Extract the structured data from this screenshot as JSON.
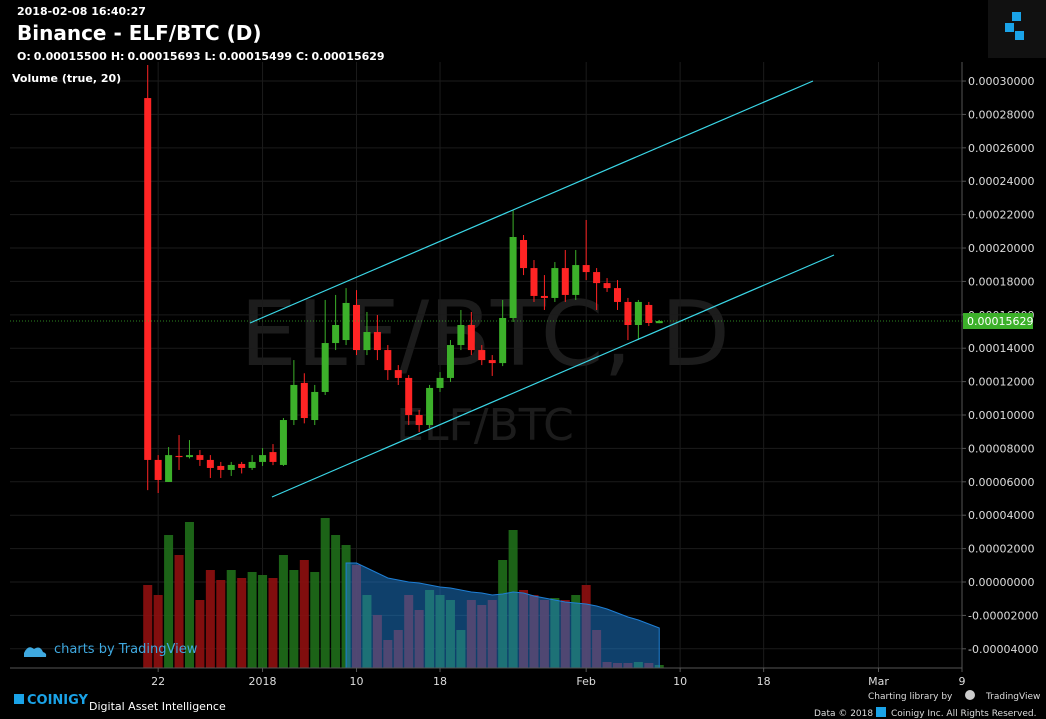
{
  "header": {
    "timestamp": "2018-02-08 16:40:27",
    "title": "Binance - ELF/BTC (D)",
    "ohlc": [
      {
        "label": "O:",
        "value": "0.00015500"
      },
      {
        "label": "H:",
        "value": "0.00015693"
      },
      {
        "label": "L:",
        "value": "0.00015499"
      },
      {
        "label": "C:",
        "value": "0.00015629"
      }
    ],
    "volume_label": "Volume (true, 20)"
  },
  "watermark": {
    "main": "ELF/BTC, D",
    "sub": "ELF/BTC"
  },
  "chart_data": {
    "type": "candlestick",
    "x": [
      "2017-12-21",
      "2017-12-22",
      "2017-12-23",
      "2017-12-24",
      "2017-12-25",
      "2017-12-26",
      "2017-12-27",
      "2017-12-28",
      "2017-12-29",
      "2017-12-30",
      "2017-12-31",
      "2018-01-01",
      "2018-01-02",
      "2018-01-03",
      "2018-01-04",
      "2018-01-05",
      "2018-01-06",
      "2018-01-07",
      "2018-01-08",
      "2018-01-09",
      "2018-01-10",
      "2018-01-11",
      "2018-01-12",
      "2018-01-13",
      "2018-01-14",
      "2018-01-15",
      "2018-01-16",
      "2018-01-17",
      "2018-01-18",
      "2018-01-19",
      "2018-01-20",
      "2018-01-21",
      "2018-01-22",
      "2018-01-23",
      "2018-01-24",
      "2018-01-25",
      "2018-01-26",
      "2018-01-27",
      "2018-01-28",
      "2018-01-29",
      "2018-01-30",
      "2018-01-31",
      "2018-02-01",
      "2018-02-02",
      "2018-02-03",
      "2018-02-04",
      "2018-02-05",
      "2018-02-06",
      "2018-02-07",
      "2018-02-08"
    ],
    "open": [
      0.0002898,
      7.31e-05,
      5.99e-05,
      7.55e-05,
      7.48e-05,
      7.6e-05,
      7.31e-05,
      6.95e-05,
      6.71e-05,
      7.07e-05,
      6.83e-05,
      7.19e-05,
      7.78e-05,
      7.01e-05,
      9.7e-05,
      0.0001192,
      9.7e-05,
      0.0001138,
      0.0001431,
      0.0001449,
      0.0001659,
      0.0001389,
      0.0001497,
      0.0001389,
      0.0001269,
      0.0001222,
      0.0001,
      9.4e-05,
      0.0001162,
      0.0001222,
      0.0001419,
      0.0001539,
      0.0001389,
      0.0001329,
      0.0001311,
      0.0001581,
      0.0002048,
      0.000188,
      0.0001713,
      0.0001701,
      0.000188,
      0.0001719,
      0.0001898,
      0.0001856,
      0.000179,
      0.000176,
      0.0001677,
      0.0001539,
      0.0001659,
      0.000155
    ],
    "high": [
      0.0003096,
      7.6e-05,
      8.08e-05,
      8.8e-05,
      8.5e-05,
      7.9e-05,
      7.6e-05,
      7.19e-05,
      7.19e-05,
      7.19e-05,
      7.6e-05,
      8.02e-05,
      8.26e-05,
      9.82e-05,
      0.0001329,
      0.000125,
      0.000118,
      0.0001689,
      0.0001719,
      0.000176,
      0.0001748,
      0.0001617,
      0.0001599,
      0.0001419,
      0.0001299,
      0.0001239,
      0.000103,
      0.000118,
      0.0001257,
      0.0001449,
      0.0001629,
      0.0001617,
      0.0001419,
      0.0001359,
      0.0001689,
      0.0002228,
      0.0002078,
      0.0001928,
      0.0001838,
      0.0001916,
      0.0001988,
      0.0001988,
      0.0002168,
      0.000188,
      0.000182,
      0.0001808,
      0.0001701,
      0.0001689,
      0.0001677,
      0.00015693
    ],
    "low": [
      5.5e-05,
      5.33e-05,
      5.99e-05,
      6.71e-05,
      7.4e-05,
      6.95e-05,
      6.23e-05,
      6.23e-05,
      6.35e-05,
      6.5e-05,
      6.71e-05,
      6.95e-05,
      7e-05,
      6.95e-05,
      9.4e-05,
      9.5e-05,
      9.4e-05,
      0.000112,
      0.0001389,
      0.0001419,
      0.0001359,
      0.0001359,
      0.0001329,
      0.000121,
      0.000118,
      9.4e-05,
      8.98e-05,
      9.22e-05,
      0.0001138,
      0.0001198,
      0.0001389,
      0.0001359,
      0.0001299,
      0.0001234,
      0.0001293,
      0.0001557,
      0.0001838,
      0.0001677,
      0.0001629,
      0.0001677,
      0.0001677,
      0.0001689,
      0.0001808,
      0.0001629,
      0.0001737,
      0.0001629,
      0.0001449,
      0.0001449,
      0.0001533,
      0.00015499
    ],
    "close": [
      7.31e-05,
      6.11e-05,
      7.6e-05,
      7.48e-05,
      7.6e-05,
      7.31e-05,
      6.83e-05,
      6.71e-05,
      7.01e-05,
      6.83e-05,
      7.19e-05,
      7.6e-05,
      7.19e-05,
      9.7e-05,
      0.000118,
      9.82e-05,
      0.0001138,
      0.0001431,
      0.0001539,
      0.0001671,
      0.0001389,
      0.0001497,
      0.0001389,
      0.0001269,
      0.0001222,
      0.0001,
      9.4e-05,
      0.0001162,
      0.0001222,
      0.0001419,
      0.0001539,
      0.0001389,
      0.0001329,
      0.0001311,
      0.0001581,
      0.0002066,
      0.000188,
      0.0001713,
      0.0001701,
      0.000188,
      0.0001719,
      0.0001898,
      0.0001856,
      0.000179,
      0.000176,
      0.0001677,
      0.0001539,
      0.0001677,
      0.0001551,
      0.00015629
    ],
    "volume": [
      83,
      73,
      133,
      113,
      146,
      68,
      98,
      88,
      98,
      90,
      96,
      93,
      90,
      113,
      98,
      108,
      96,
      150,
      133,
      123,
      103,
      73,
      53,
      28,
      38,
      73,
      58,
      78,
      73,
      68,
      38,
      68,
      63,
      68,
      108,
      138,
      78,
      73,
      68,
      70,
      68,
      73,
      83,
      38,
      6,
      5,
      5,
      6,
      5,
      3
    ],
    "volume_ma": [
      null,
      null,
      null,
      null,
      null,
      null,
      null,
      null,
      null,
      null,
      null,
      null,
      null,
      null,
      null,
      null,
      null,
      null,
      null,
      105,
      105,
      100,
      95,
      90,
      88,
      86,
      85,
      83,
      81,
      80,
      78,
      76,
      75,
      73,
      74,
      76,
      75,
      72,
      70,
      68,
      66,
      65,
      64,
      62,
      59,
      55,
      51,
      48,
      44,
      40
    ],
    "colors": {
      "up": "#3cb02a",
      "down": "#ff2424",
      "volume_up": "#1f6e1a",
      "volume_down": "#8f1010",
      "volume_ma": "#1e7fd6",
      "last_price": "#3cb02a"
    },
    "ylim": [
      -5.15e-05,
      0.0003096
    ],
    "yticks": [
      {
        "value": 0.0003,
        "label": "0.00030000"
      },
      {
        "value": 0.00028,
        "label": "0.00028000"
      },
      {
        "value": 0.00026,
        "label": "0.00026000"
      },
      {
        "value": 0.00024,
        "label": "0.00024000"
      },
      {
        "value": 0.00022,
        "label": "0.00022000"
      },
      {
        "value": 0.0002,
        "label": "0.00020000"
      },
      {
        "value": 0.00018,
        "label": "0.00018000"
      },
      {
        "value": 0.00016,
        "label": "0.00016000"
      },
      {
        "value": 0.00014,
        "label": "0.00014000"
      },
      {
        "value": 0.00012,
        "label": "0.00012000"
      },
      {
        "value": 0.0001,
        "label": "0.00010000"
      },
      {
        "value": 8e-05,
        "label": "0.00008000"
      },
      {
        "value": 6e-05,
        "label": "0.00006000"
      },
      {
        "value": 4e-05,
        "label": "0.00004000"
      },
      {
        "value": 2e-05,
        "label": "0.00002000"
      },
      {
        "value": 0,
        "label": "0.00000000"
      },
      {
        "value": -2e-05,
        "label": "-0.00002000"
      },
      {
        "value": -4e-05,
        "label": "-0.00004000"
      }
    ],
    "xlim": [
      "2017-12-08",
      "2018-03-09"
    ],
    "xticks": [
      {
        "value": "2017-12-22",
        "label": "22"
      },
      {
        "value": "2018-01-01",
        "label": "2018"
      },
      {
        "value": "2018-01-10",
        "label": "10"
      },
      {
        "value": "2018-01-18",
        "label": "18"
      },
      {
        "value": "2018-02-01",
        "label": "Feb"
      },
      {
        "value": "2018-02-10",
        "label": "10"
      },
      {
        "value": "2018-02-18",
        "label": "18"
      },
      {
        "value": "2018-03-01",
        "label": "Mar"
      },
      {
        "value": "2018-03-09",
        "label": "9"
      }
    ],
    "grid": true
  },
  "footer": {
    "tv_badge": "charts by TradingView",
    "brand": "COINIGY",
    "tagline": "Digital Asset Intelligence",
    "charting": "Charting library by",
    "charting_brand": "TradingView",
    "data_copy": "Data © 2018",
    "rights": "Coinigy Inc. All Rights Reserved."
  }
}
